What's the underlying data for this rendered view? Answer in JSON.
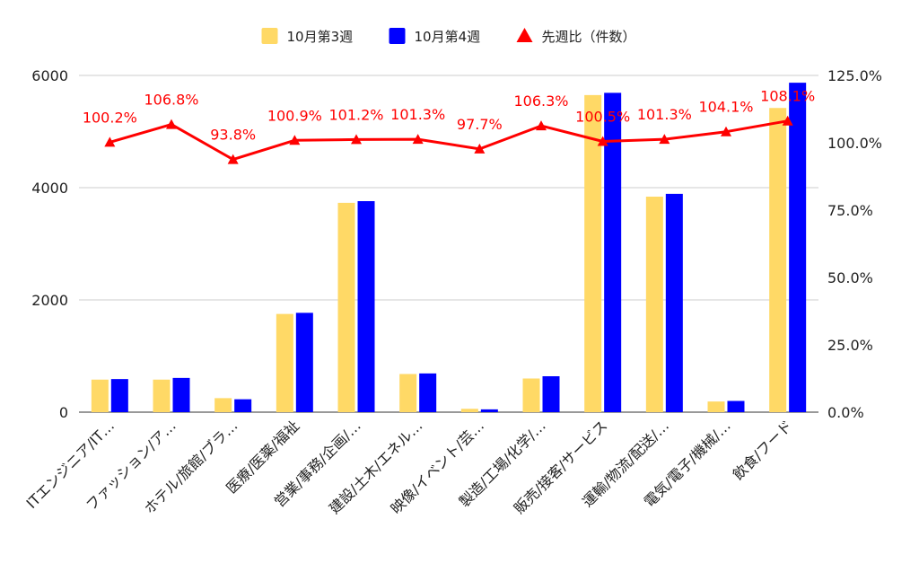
{
  "chart_data": {
    "type": "bar",
    "categories": [
      "ITエンジニア/IT…",
      "ファッション/ア…",
      "ホテル/旅館/ブラ…",
      "医療/医薬/福祉",
      "営業/事務/企画/…",
      "建設/土木/エネル…",
      "映像/イベント/芸…",
      "製造/工場/化学/…",
      "販売/接客/サービス",
      "運輸/物流/配送/…",
      "電気/電子/機械/…",
      "飲食/フード"
    ],
    "series": [
      {
        "name": "10月第3週",
        "color": "#FFD966",
        "values": [
          580,
          580,
          250,
          1750,
          3730,
          680,
          60,
          600,
          5650,
          3840,
          190,
          5420
        ]
      },
      {
        "name": "10月第4週",
        "color": "#0000FF",
        "values": [
          590,
          610,
          230,
          1770,
          3760,
          690,
          50,
          640,
          5690,
          3890,
          200,
          5870
        ]
      },
      {
        "name": "先週比（件数）",
        "color": "#FF0000",
        "axis": "right",
        "type": "line",
        "marker": "triangle",
        "values": [
          100.2,
          106.8,
          93.8,
          100.9,
          101.2,
          101.3,
          97.7,
          106.3,
          100.5,
          101.3,
          104.1,
          108.1
        ],
        "labels": [
          "100.2%",
          "106.8%",
          "93.8%",
          "100.9%",
          "101.2%",
          "101.3%",
          "97.7%",
          "106.3%",
          "100.5%",
          "101.3%",
          "104.1%",
          "108.1%"
        ]
      }
    ],
    "y_left": {
      "range": [
        0,
        6000
      ],
      "ticks": [
        0,
        2000,
        4000,
        6000
      ],
      "tick_labels": [
        "0",
        "2000",
        "4000",
        "6000"
      ]
    },
    "y_right": {
      "range": [
        0,
        125
      ],
      "ticks": [
        0,
        25,
        50,
        75,
        100,
        125
      ],
      "tick_labels": [
        "0.0%",
        "25.0%",
        "50.0%",
        "75.0%",
        "100.0%",
        "125.0%"
      ]
    },
    "grid": true,
    "legend_position": "top"
  }
}
